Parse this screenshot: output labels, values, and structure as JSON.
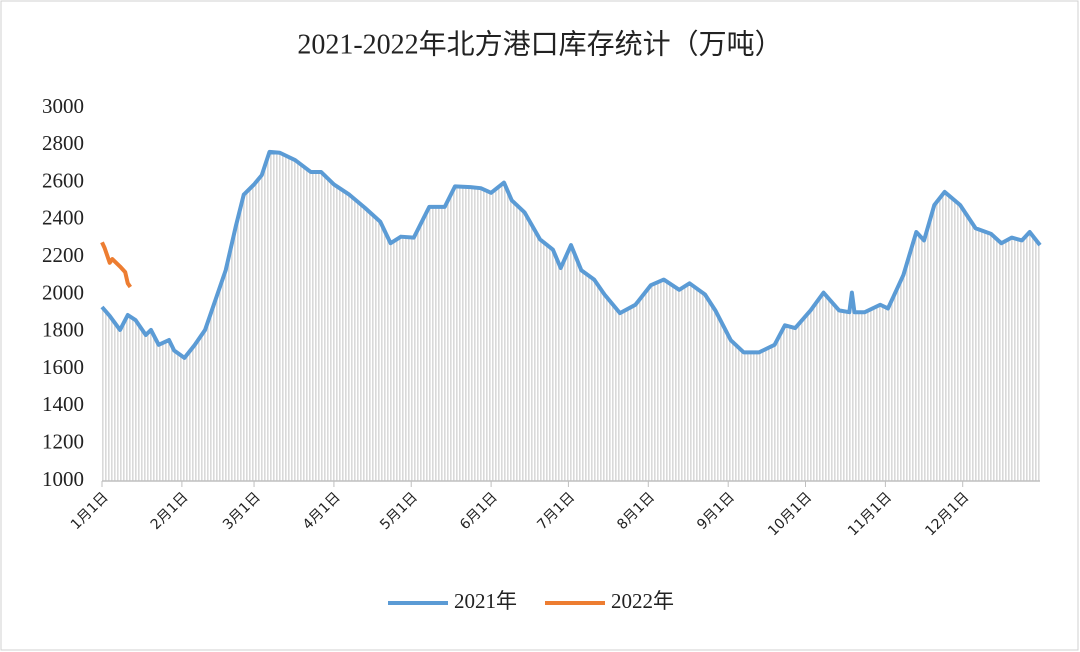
{
  "chart_data": {
    "type": "line",
    "title": "2021-2022年北方港口库存统计（万吨）",
    "series": [
      {
        "name": "2021年",
        "color": "#5b9bd5",
        "x": [
          0,
          3,
          7,
          10,
          13,
          17,
          19,
          22,
          26,
          28,
          32,
          36,
          40,
          44,
          48,
          52,
          55,
          59,
          62,
          65,
          69,
          75,
          81,
          85,
          90,
          96,
          102,
          108,
          112,
          116,
          121,
          127,
          133,
          137,
          143,
          147,
          151,
          156,
          159,
          164,
          170,
          175,
          178,
          182,
          186,
          191,
          195,
          201,
          207,
          213,
          218,
          224,
          228,
          234,
          238,
          244,
          249,
          255,
          261,
          265,
          269,
          275,
          280,
          286,
          290,
          291,
          292,
          296,
          302,
          305,
          311,
          316,
          319,
          323,
          327,
          333,
          339,
          345,
          349,
          353,
          357,
          360,
          364
        ],
        "values": [
          1933,
          1885,
          1810,
          1890,
          1863,
          1783,
          1810,
          1730,
          1756,
          1700,
          1660,
          1730,
          1810,
          1970,
          2130,
          2370,
          2535,
          2590,
          2640,
          2765,
          2760,
          2720,
          2657,
          2657,
          2590,
          2535,
          2465,
          2390,
          2275,
          2310,
          2305,
          2470,
          2470,
          2580,
          2576,
          2570,
          2545,
          2600,
          2505,
          2440,
          2295,
          2240,
          2142,
          2265,
          2130,
          2080,
          2000,
          1900,
          1945,
          2050,
          2080,
          2025,
          2060,
          2000,
          1915,
          1755,
          1690,
          1690,
          1730,
          1835,
          1820,
          1915,
          2010,
          1915,
          1905,
          2010,
          1905,
          1905,
          1945,
          1925,
          2105,
          2335,
          2290,
          2480,
          2550,
          2480,
          2355,
          2325,
          2275,
          2305,
          2290,
          2335,
          2265
        ]
      },
      {
        "name": "2022年",
        "color": "#ed7d31",
        "x": [
          0,
          1,
          3,
          4,
          7,
          9,
          10,
          11
        ],
        "values": [
          2280,
          2250,
          2170,
          2190,
          2150,
          2120,
          2060,
          2040
        ]
      }
    ],
    "xlim": [
      0,
      364
    ],
    "xticks": [
      {
        "value": 0,
        "label": "1月1日"
      },
      {
        "value": 31,
        "label": "2月1日"
      },
      {
        "value": 59,
        "label": "3月1日"
      },
      {
        "value": 90,
        "label": "4月1日"
      },
      {
        "value": 120,
        "label": "5月1日"
      },
      {
        "value": 151,
        "label": "6月1日"
      },
      {
        "value": 181,
        "label": "7月1日"
      },
      {
        "value": 212,
        "label": "8月1日"
      },
      {
        "value": 243,
        "label": "9月1日"
      },
      {
        "value": 273,
        "label": "10月1日"
      },
      {
        "value": 304,
        "label": "11月1日"
      },
      {
        "value": 334,
        "label": "12月1日"
      }
    ],
    "ylim": [
      1000,
      3000
    ],
    "yticks": [
      1000,
      1200,
      1400,
      1600,
      1800,
      2000,
      2200,
      2400,
      2600,
      2800,
      3000
    ],
    "legend": "bottom"
  }
}
